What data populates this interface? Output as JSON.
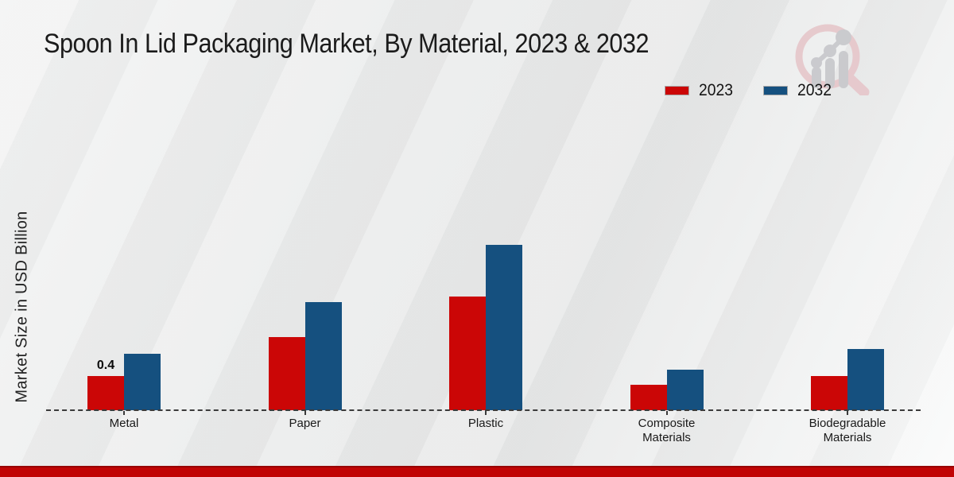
{
  "title": "Spoon In Lid Packaging Market, By Material, 2023 & 2032",
  "legend": [
    {
      "label": "2023",
      "color": "#cb0606"
    },
    {
      "label": "2032",
      "color": "#15507f"
    }
  ],
  "icons": {
    "logo": "magnifier-growth-chart-logo"
  },
  "colors": {
    "series_2023": "#cb0606",
    "series_2032": "#15507f",
    "footer_bar": "#c10404",
    "baseline": "#3b3b3b",
    "logo_ring": "#e6c6ca",
    "logo_bars": "#c7c7cb"
  },
  "chart_data": {
    "type": "bar",
    "title": "Spoon In Lid Packaging Market, By Material, 2023 & 2032",
    "ylabel": "Market Size in USD Billion",
    "xlabel": "",
    "categories": [
      "Metal",
      "Paper",
      "Plastic",
      "Composite Materials",
      "Biodegradable Materials"
    ],
    "series": [
      {
        "name": "2023",
        "color": "#cb0606",
        "values": [
          0.4,
          0.86,
          1.33,
          0.3,
          0.4
        ],
        "value_labels": [
          "0.4",
          "",
          "",
          "",
          ""
        ]
      },
      {
        "name": "2032",
        "color": "#15507f",
        "values": [
          0.66,
          1.27,
          1.94,
          0.48,
          0.72
        ],
        "value_labels": [
          "",
          "",
          "",
          "",
          ""
        ]
      }
    ],
    "ylim": [
      0,
      2.2
    ],
    "grid": false,
    "baseline_style": "dashed",
    "legend_position": "top-right",
    "y_axis_ticks_visible": false
  }
}
